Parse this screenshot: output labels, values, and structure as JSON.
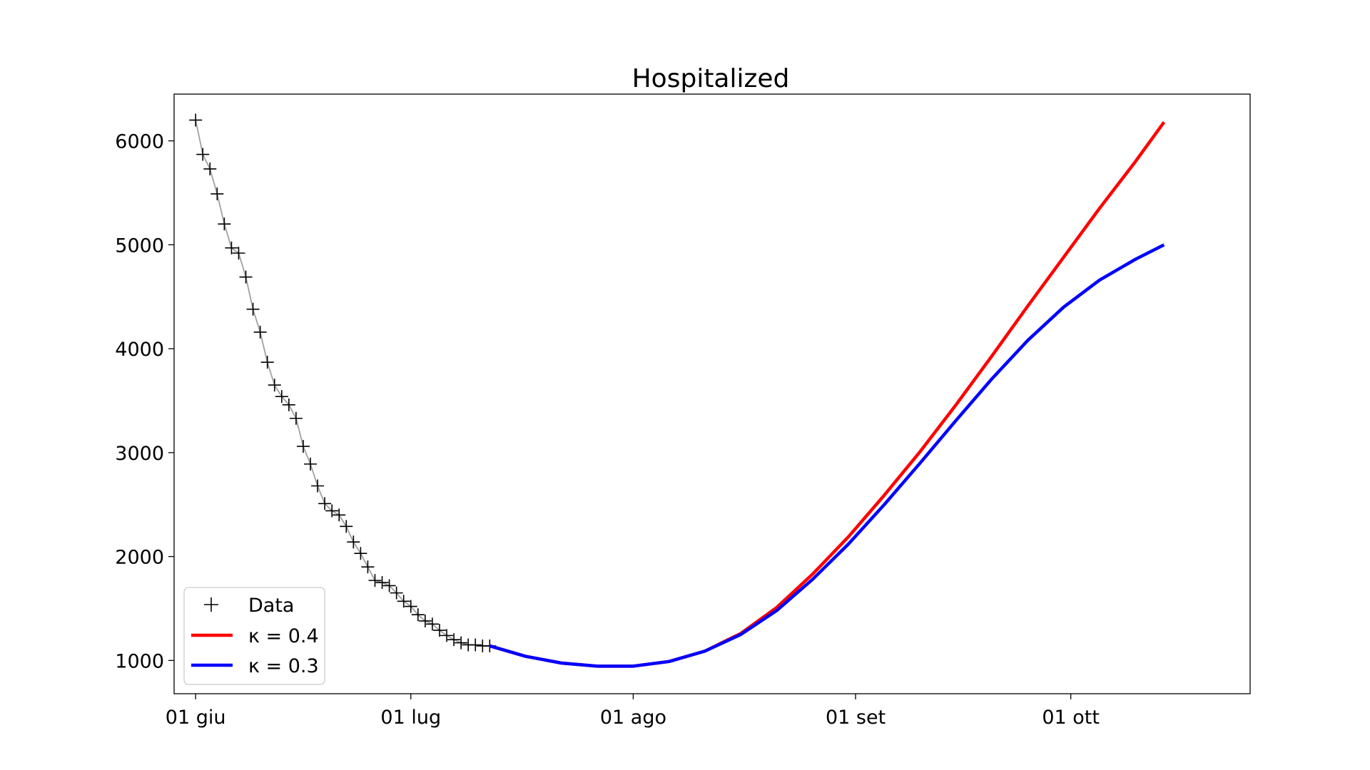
{
  "chart_data": {
    "type": "line",
    "title": "Hospitalized",
    "xlabel": "",
    "ylabel": "",
    "x_axis": {
      "type": "date",
      "range": [
        "2020-05-29",
        "2020-10-26"
      ],
      "ticks": [
        {
          "date": "2020-06-01",
          "label": "01 giu"
        },
        {
          "date": "2020-07-01",
          "label": "01 lug"
        },
        {
          "date": "2020-08-01",
          "label": "01 ago"
        },
        {
          "date": "2020-09-01",
          "label": "01 set"
        },
        {
          "date": "2020-10-01",
          "label": "01 ott"
        }
      ]
    },
    "y_axis": {
      "range": [
        680,
        6450
      ],
      "ticks": [
        1000,
        2000,
        3000,
        4000,
        5000,
        6000
      ]
    },
    "grid": false,
    "legend_position": "bottom-left",
    "series": [
      {
        "name": "Data",
        "kind": "markers",
        "marker": "plus",
        "color": "#000000",
        "connector_color": "#a0a0a0",
        "points": [
          [
            "2020-06-01",
            6200
          ],
          [
            "2020-06-02",
            5870
          ],
          [
            "2020-06-03",
            5730
          ],
          [
            "2020-06-04",
            5490
          ],
          [
            "2020-06-05",
            5200
          ],
          [
            "2020-06-06",
            4970
          ],
          [
            "2020-06-07",
            4920
          ],
          [
            "2020-06-08",
            4690
          ],
          [
            "2020-06-09",
            4380
          ],
          [
            "2020-06-10",
            4160
          ],
          [
            "2020-06-11",
            3870
          ],
          [
            "2020-06-12",
            3650
          ],
          [
            "2020-06-13",
            3540
          ],
          [
            "2020-06-14",
            3460
          ],
          [
            "2020-06-15",
            3330
          ],
          [
            "2020-06-16",
            3060
          ],
          [
            "2020-06-17",
            2890
          ],
          [
            "2020-06-18",
            2680
          ],
          [
            "2020-06-19",
            2510
          ],
          [
            "2020-06-20",
            2440
          ],
          [
            "2020-06-21",
            2400
          ],
          [
            "2020-06-22",
            2290
          ],
          [
            "2020-06-23",
            2140
          ],
          [
            "2020-06-24",
            2030
          ],
          [
            "2020-06-25",
            1900
          ],
          [
            "2020-06-26",
            1770
          ],
          [
            "2020-06-27",
            1750
          ],
          [
            "2020-06-28",
            1720
          ],
          [
            "2020-06-29",
            1650
          ],
          [
            "2020-06-30",
            1570
          ],
          [
            "2020-07-01",
            1520
          ],
          [
            "2020-07-02",
            1440
          ],
          [
            "2020-07-03",
            1380
          ],
          [
            "2020-07-04",
            1350
          ],
          [
            "2020-07-05",
            1290
          ],
          [
            "2020-07-06",
            1240
          ],
          [
            "2020-07-07",
            1200
          ],
          [
            "2020-07-08",
            1170
          ],
          [
            "2020-07-09",
            1150
          ],
          [
            "2020-07-10",
            1150
          ],
          [
            "2020-07-11",
            1140
          ],
          [
            "2020-07-12",
            1140
          ]
        ]
      },
      {
        "name": "κ = 0.4",
        "kind": "line",
        "color": "#ff0000",
        "points": [
          [
            "2020-07-12",
            1140
          ],
          [
            "2020-07-17",
            1040
          ],
          [
            "2020-07-22",
            975
          ],
          [
            "2020-07-27",
            945
          ],
          [
            "2020-08-01",
            945
          ],
          [
            "2020-08-06",
            990
          ],
          [
            "2020-08-11",
            1090
          ],
          [
            "2020-08-16",
            1260
          ],
          [
            "2020-08-21",
            1510
          ],
          [
            "2020-08-26",
            1830
          ],
          [
            "2020-08-31",
            2190
          ],
          [
            "2020-09-05",
            2590
          ],
          [
            "2020-09-10",
            3010
          ],
          [
            "2020-09-15",
            3460
          ],
          [
            "2020-09-20",
            3930
          ],
          [
            "2020-09-25",
            4410
          ],
          [
            "2020-09-30",
            4880
          ],
          [
            "2020-10-05",
            5350
          ],
          [
            "2020-10-10",
            5800
          ],
          [
            "2020-10-14",
            6180
          ]
        ]
      },
      {
        "name": "κ = 0.3",
        "kind": "line",
        "color": "#0000ff",
        "points": [
          [
            "2020-07-12",
            1140
          ],
          [
            "2020-07-17",
            1040
          ],
          [
            "2020-07-22",
            975
          ],
          [
            "2020-07-27",
            945
          ],
          [
            "2020-08-01",
            945
          ],
          [
            "2020-08-06",
            990
          ],
          [
            "2020-08-11",
            1090
          ],
          [
            "2020-08-16",
            1250
          ],
          [
            "2020-08-21",
            1480
          ],
          [
            "2020-08-26",
            1780
          ],
          [
            "2020-08-31",
            2120
          ],
          [
            "2020-09-05",
            2500
          ],
          [
            "2020-09-10",
            2900
          ],
          [
            "2020-09-15",
            3310
          ],
          [
            "2020-09-20",
            3710
          ],
          [
            "2020-09-25",
            4080
          ],
          [
            "2020-09-30",
            4400
          ],
          [
            "2020-10-05",
            4660
          ],
          [
            "2020-10-10",
            4860
          ],
          [
            "2020-10-14",
            5000
          ]
        ]
      }
    ]
  }
}
